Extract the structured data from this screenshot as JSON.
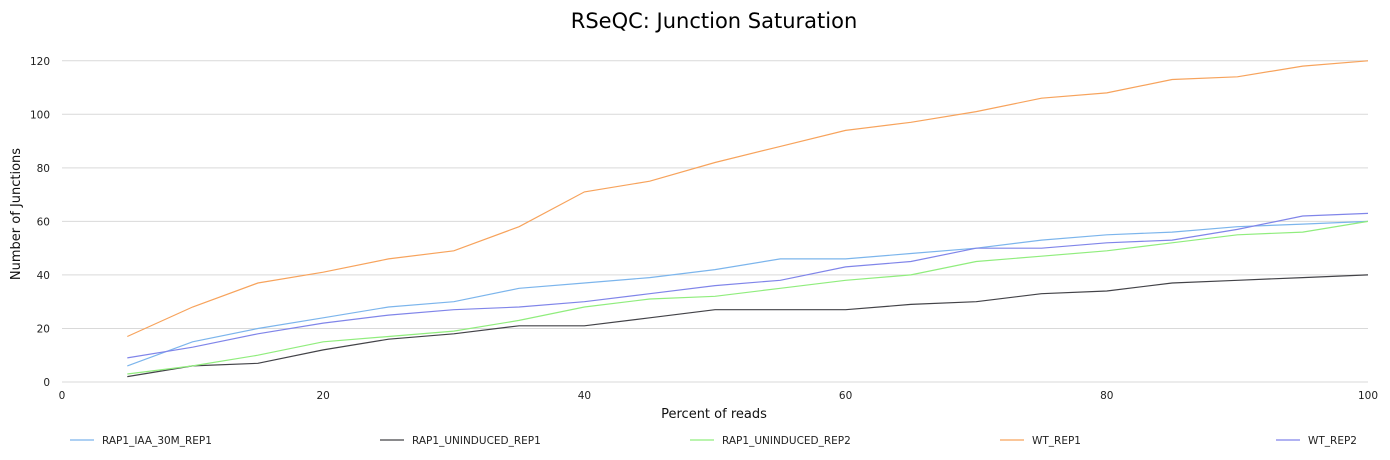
{
  "chart_data": {
    "type": "line",
    "title": "RSeQC: Junction Saturation",
    "xlabel": "Percent of reads",
    "ylabel": "Number of Junctions",
    "xlim": [
      0,
      100
    ],
    "ylim": [
      0,
      130
    ],
    "xticks": [
      0,
      20,
      40,
      60,
      80,
      100
    ],
    "yticks": [
      0,
      20,
      40,
      60,
      80,
      100,
      120
    ],
    "grid": "horizontal",
    "legend_position": "bottom",
    "x": [
      5,
      10,
      15,
      20,
      25,
      30,
      35,
      40,
      45,
      50,
      55,
      60,
      65,
      70,
      75,
      80,
      85,
      90,
      95,
      100
    ],
    "series": [
      {
        "name": "RAP1_IAA_30M_REP1",
        "color": "#7cb5ec",
        "values": [
          6,
          15,
          20,
          24,
          28,
          30,
          35,
          37,
          39,
          42,
          46,
          46,
          48,
          50,
          53,
          55,
          56,
          58,
          59,
          60
        ]
      },
      {
        "name": "RAP1_UNINDUCED_REP1",
        "color": "#434348",
        "values": [
          2,
          6,
          7,
          12,
          16,
          18,
          21,
          21,
          24,
          27,
          27,
          27,
          29,
          30,
          33,
          34,
          37,
          38,
          39,
          40
        ]
      },
      {
        "name": "RAP1_UNINDUCED_REP2",
        "color": "#90ed7d",
        "values": [
          3,
          6,
          10,
          15,
          17,
          19,
          23,
          28,
          31,
          32,
          35,
          38,
          40,
          45,
          47,
          49,
          52,
          55,
          56,
          60
        ]
      },
      {
        "name": "WT_REP1",
        "color": "#f7a35c",
        "values": [
          17,
          28,
          37,
          41,
          46,
          49,
          58,
          71,
          75,
          82,
          88,
          94,
          97,
          101,
          106,
          108,
          113,
          114,
          118,
          120
        ]
      },
      {
        "name": "WT_REP2",
        "color": "#8085e9",
        "values": [
          9,
          13,
          18,
          22,
          25,
          27,
          28,
          30,
          33,
          36,
          38,
          43,
          45,
          50,
          50,
          52,
          53,
          57,
          62,
          63
        ]
      }
    ]
  }
}
